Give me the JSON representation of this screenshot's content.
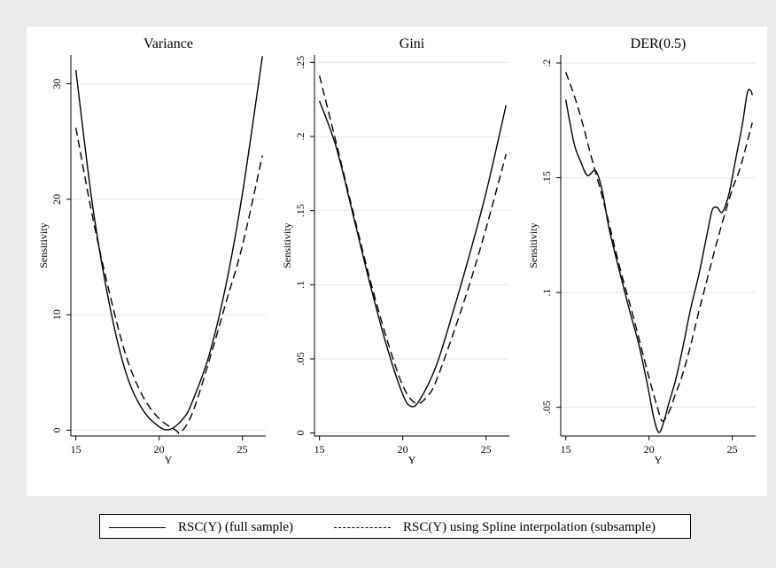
{
  "chart_data": [
    {
      "type": "line",
      "title": "Variance",
      "xlabel": "Y",
      "ylabel": "Sensitivity",
      "xlim": [
        14.7,
        26.4
      ],
      "ylim": [
        -0.5,
        32.5
      ],
      "xticks": [
        15,
        20,
        25
      ],
      "xtick_labels": [
        "15",
        "20",
        "25"
      ],
      "yticks": [
        0,
        10,
        20,
        30
      ],
      "ytick_labels": [
        "0",
        "10",
        "20",
        "30"
      ],
      "grid": true,
      "series": [
        {
          "name": "RSC(Y) (full sample)",
          "style": "solid",
          "x": [
            15,
            16,
            17,
            18,
            19,
            20,
            20.7,
            21.5,
            22,
            23,
            24,
            25,
            26.2
          ],
          "y": [
            31.2,
            19.5,
            11,
            5,
            1.8,
            0.3,
            0.1,
            1.1,
            2.5,
            6.5,
            12.5,
            20.5,
            32.4
          ]
        },
        {
          "name": "RSC(Y) using Spline interpolation (subsample)",
          "style": "dashed",
          "x": [
            15,
            16,
            17,
            18,
            19,
            20,
            21,
            21.3,
            22,
            23,
            24,
            25,
            26.2
          ],
          "y": [
            26.2,
            18.5,
            12,
            6.5,
            3,
            1,
            0,
            -0.2,
            1.5,
            6,
            11,
            16,
            23.8
          ]
        }
      ]
    },
    {
      "type": "line",
      "title": "Gini",
      "xlabel": "Y",
      "ylabel": "Sensitivity",
      "xlim": [
        14.7,
        26.4
      ],
      "ylim": [
        -0.002,
        0.255
      ],
      "xticks": [
        15,
        20,
        25
      ],
      "xtick_labels": [
        "15",
        "20",
        "25"
      ],
      "yticks": [
        0,
        0.05,
        0.1,
        0.15,
        0.2,
        0.25
      ],
      "ytick_labels": [
        "0",
        ".05",
        ".1",
        ".15",
        ".2",
        ".25"
      ],
      "grid": true,
      "series": [
        {
          "name": "RSC(Y) (full sample)",
          "style": "solid",
          "x": [
            15,
            16,
            17,
            18,
            19,
            20,
            20.5,
            21,
            22,
            23,
            24,
            25,
            26.2
          ],
          "y": [
            0.224,
            0.193,
            0.148,
            0.102,
            0.06,
            0.026,
            0.018,
            0.022,
            0.045,
            0.081,
            0.12,
            0.162,
            0.221
          ]
        },
        {
          "name": "RSC(Y) using Spline interpolation (subsample)",
          "style": "dashed",
          "x": [
            15,
            16,
            17,
            18,
            19,
            20,
            20.8,
            21.5,
            22,
            23,
            24,
            25,
            26.2
          ],
          "y": [
            0.241,
            0.196,
            0.15,
            0.105,
            0.065,
            0.032,
            0.02,
            0.025,
            0.035,
            0.066,
            0.1,
            0.138,
            0.188
          ]
        }
      ]
    },
    {
      "type": "line",
      "title": "DER(0.5)",
      "xlabel": "Y",
      "ylabel": "Sensitivity",
      "xlim": [
        14.7,
        26.4
      ],
      "ylim": [
        0.0375,
        0.2035
      ],
      "xticks": [
        15,
        20,
        25
      ],
      "xtick_labels": [
        "15",
        "20",
        "25"
      ],
      "yticks": [
        0.05,
        0.1,
        0.15,
        0.2
      ],
      "ytick_labels": [
        ".05",
        ".1",
        ".15",
        ".2"
      ],
      "grid": true,
      "series": [
        {
          "name": "RSC(Y) (full sample)",
          "style": "solid",
          "x": [
            15,
            15.5,
            15.9,
            16.3,
            16.8,
            17.2,
            17.6,
            18.2,
            18.8,
            19.4,
            19.9,
            20.3,
            20.6,
            20.9,
            21.2,
            21.6,
            22,
            22.5,
            23,
            23.5,
            23.8,
            24.1,
            24.4,
            24.8,
            25.2,
            25.6,
            25.9,
            26.1,
            26.2
          ],
          "y": [
            0.184,
            0.165,
            0.157,
            0.151,
            0.153,
            0.144,
            0.128,
            0.11,
            0.093,
            0.077,
            0.06,
            0.045,
            0.039,
            0.044,
            0.052,
            0.062,
            0.075,
            0.093,
            0.108,
            0.126,
            0.136,
            0.137,
            0.135,
            0.143,
            0.158,
            0.173,
            0.187,
            0.188,
            0.186
          ]
        },
        {
          "name": "RSC(Y) using Spline interpolation (subsample)",
          "style": "dashed",
          "x": [
            15,
            15.5,
            16,
            16.5,
            17,
            17.5,
            18,
            18.5,
            19,
            19.5,
            20,
            20.5,
            20.8,
            21.2,
            21.6,
            22,
            22.5,
            23,
            23.5,
            24,
            24.5,
            25,
            25.5,
            26.2
          ],
          "y": [
            0.196,
            0.186,
            0.174,
            0.16,
            0.147,
            0.133,
            0.118,
            0.104,
            0.091,
            0.077,
            0.063,
            0.05,
            0.044,
            0.048,
            0.056,
            0.064,
            0.077,
            0.092,
            0.106,
            0.12,
            0.133,
            0.145,
            0.155,
            0.174
          ]
        }
      ]
    }
  ],
  "legend": {
    "items": [
      {
        "label": "RSC(Y) (full sample)",
        "style": "solid"
      },
      {
        "label": "RSC(Y) using Spline interpolation (subsample)",
        "style": "dashed"
      }
    ]
  }
}
